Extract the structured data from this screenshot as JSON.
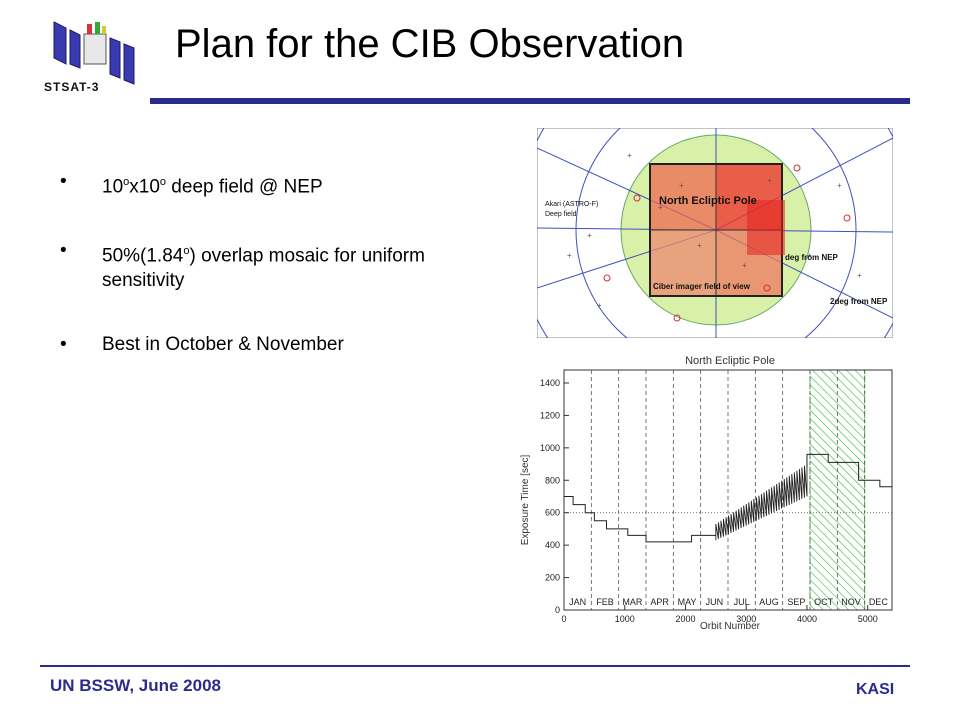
{
  "header": {
    "logo_label": "STSAT-3",
    "title": "Plan for the CIB Observation"
  },
  "bullets": [
    {
      "pre": "10",
      "sup1": "o",
      "mid": "x10",
      "sup2": "o",
      "post": " deep field @ NEP"
    },
    {
      "pre": "50%(1.84",
      "sup1": "o",
      "post": ") overlap mosaic for uniform sensitivity"
    },
    {
      "text": "Best in October & November"
    }
  ],
  "sky_map": {
    "labels": {
      "nep": "North Ecliptic Pole",
      "akari": "Akari (ASTRO-F)",
      "deep": "Deep field",
      "ciber": "Ciber imager field of view",
      "deg1": "deg from NEP",
      "deg2": "2deg from NEP"
    }
  },
  "chart_data": {
    "type": "line",
    "title": "North Ecliptic Pole",
    "xlabel": "Orbit Number",
    "ylabel": "Exposure Time [sec]",
    "xlim": [
      0,
      5400
    ],
    "ylim": [
      0,
      1480
    ],
    "xticks": [
      0,
      1000,
      2000,
      3000,
      4000,
      5000
    ],
    "yticks": [
      0,
      200,
      400,
      600,
      800,
      1000,
      1200,
      1400
    ],
    "months": [
      "JAN",
      "FEB",
      "MAR",
      "APR",
      "MAY",
      "JUN",
      "JUL",
      "AUG",
      "SEP",
      "OCT",
      "NOV",
      "DEC"
    ],
    "month_boundaries": [
      450,
      900,
      1350,
      1800,
      2250,
      2700,
      3150,
      3600,
      4050,
      4500,
      4950
    ],
    "highlight": {
      "months": [
        "OCT",
        "NOV"
      ],
      "x": [
        4050,
        4950
      ],
      "color": "#33bb33"
    },
    "reference_line_y": 600,
    "series": [
      {
        "x": [
          0,
          150,
          150,
          350,
          350,
          500,
          500,
          700,
          700,
          1050,
          1050,
          1350,
          1350,
          2100,
          2100,
          2500
        ],
        "y": [
          700,
          700,
          650,
          650,
          600,
          600,
          550,
          550,
          500,
          500,
          460,
          460,
          420,
          420,
          460,
          460
        ]
      },
      {
        "x": [
          4000,
          4000,
          4350,
          4350,
          4850,
          4850,
          5200,
          5200,
          5400
        ],
        "y": [
          880,
          960,
          960,
          910,
          910,
          800,
          800,
          760,
          760
        ]
      }
    ],
    "sawtooth": {
      "x_start": 2500,
      "x_end": 4000,
      "y_low_start": 430,
      "y_low_end": 700,
      "y_high_start": 530,
      "y_high_end": 900
    }
  },
  "footer": {
    "left": "UN BSSW, June 2008",
    "right": "KASI"
  }
}
